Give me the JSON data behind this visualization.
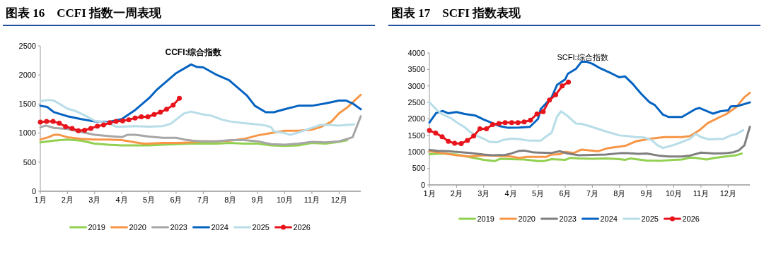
{
  "chart_data": [
    {
      "type": "line",
      "title": "图表 16　CCFI 指数一周表现",
      "subtitle": "CCFI:综合指数",
      "xlim": [
        1,
        12.8
      ],
      "xticks": [
        {
          "value": 1,
          "label": "1月"
        },
        {
          "value": 2,
          "label": "2月"
        },
        {
          "value": 3,
          "label": "3月"
        },
        {
          "value": 4,
          "label": "4月"
        },
        {
          "value": 5,
          "label": "5月"
        },
        {
          "value": 6,
          "label": "6月"
        },
        {
          "value": 7,
          "label": "7月"
        },
        {
          "value": 8,
          "label": "8月"
        },
        {
          "value": 9,
          "label": "9月"
        },
        {
          "value": 10,
          "label": "10月"
        },
        {
          "value": 11,
          "label": "11月"
        },
        {
          "value": 12,
          "label": "12月"
        }
      ],
      "ylim": [
        0,
        2500
      ],
      "yticks": [
        0,
        500,
        1000,
        1500,
        2000,
        2500
      ],
      "grid": false,
      "legend": "bottom",
      "series": [
        {
          "name": "2019",
          "color": "#92d050",
          "x": [
            1,
            1.5,
            2,
            2.5,
            3,
            3.5,
            4,
            4.5,
            5,
            5.5,
            6,
            6.5,
            7,
            7.5,
            8,
            8.5,
            9,
            9.5,
            10,
            10.5,
            11,
            11.5,
            12,
            12.3
          ],
          "values": [
            840,
            870,
            890,
            870,
            820,
            800,
            790,
            790,
            790,
            800,
            810,
            820,
            820,
            820,
            830,
            820,
            820,
            790,
            780,
            790,
            830,
            820,
            850,
            880
          ]
        },
        {
          "name": "2020",
          "color": "#f79646",
          "x": [
            1,
            1.3,
            1.5,
            1.7,
            2,
            2.5,
            3,
            3.5,
            4,
            4.5,
            4.8,
            5,
            5.5,
            6,
            6.5,
            7,
            7.5,
            8,
            8.5,
            9,
            9.5,
            10,
            10.5,
            11,
            11.3,
            11.7,
            12,
            12.3,
            12.8
          ],
          "values": [
            890,
            930,
            970,
            970,
            930,
            900,
            890,
            890,
            880,
            840,
            820,
            820,
            830,
            830,
            840,
            860,
            860,
            870,
            900,
            960,
            1000,
            1040,
            1040,
            1060,
            1100,
            1190,
            1340,
            1440,
            1660
          ]
        },
        {
          "name": "2023",
          "color": "#a6a6a6",
          "x": [
            1,
            1.2,
            1.5,
            2,
            2.5,
            3,
            3.5,
            4,
            4.2,
            4.5,
            5,
            5.5,
            6,
            6.3,
            6.6,
            7,
            7.5,
            8,
            8.5,
            9,
            9.5,
            10,
            10.5,
            11,
            11.5,
            12,
            12.3,
            12.5,
            12.8
          ],
          "values": [
            1100,
            1130,
            1090,
            1070,
            1020,
            970,
            950,
            930,
            970,
            970,
            940,
            920,
            920,
            890,
            870,
            860,
            860,
            880,
            880,
            860,
            810,
            800,
            820,
            850,
            840,
            860,
            900,
            930,
            1290
          ]
        },
        {
          "name": "2024",
          "color": "#0563c1",
          "x": [
            1,
            1.25,
            1.5,
            2,
            2.5,
            3,
            3.5,
            4,
            4.5,
            5,
            5.3,
            6,
            6.55,
            6.75,
            7,
            7.5,
            7.95,
            8.6,
            8.9,
            9.3,
            9.6,
            10,
            10.5,
            11,
            11.5,
            12,
            12.25,
            12.5,
            12.8
          ],
          "values": [
            1470,
            1450,
            1360,
            1290,
            1240,
            1200,
            1190,
            1240,
            1400,
            1600,
            1750,
            2030,
            2180,
            2140,
            2130,
            2000,
            1910,
            1650,
            1470,
            1360,
            1360,
            1410,
            1470,
            1470,
            1510,
            1560,
            1560,
            1510,
            1410
          ]
        },
        {
          "name": "2025",
          "color": "#b7dde8",
          "x": [
            1,
            1.3,
            1.5,
            2,
            2.3,
            2.7,
            3,
            3.5,
            3.8,
            4,
            4.5,
            5,
            5.5,
            5.8,
            6.1,
            6.3,
            6.55,
            7,
            7.3,
            7.7,
            8,
            8.5,
            9,
            9.3,
            9.5,
            9.6,
            10,
            10.2,
            10.5,
            11,
            11.3,
            11.6,
            12,
            12.3,
            12.55
          ],
          "values": [
            1550,
            1570,
            1560,
            1420,
            1380,
            1290,
            1210,
            1170,
            1110,
            1110,
            1120,
            1110,
            1120,
            1160,
            1270,
            1340,
            1370,
            1320,
            1300,
            1230,
            1200,
            1170,
            1150,
            1130,
            1100,
            1030,
            1000,
            970,
            1010,
            1090,
            1140,
            1140,
            1130,
            1140,
            1150
          ]
        },
        {
          "name": "2026",
          "color": "#e8141c",
          "marker": "circle",
          "x": [
            1,
            1.23,
            1.47,
            1.7,
            1.93,
            2.17,
            2.4,
            2.63,
            2.86,
            3.1,
            3.33,
            3.56,
            3.79,
            4.03,
            4.26,
            4.49,
            4.72,
            4.96,
            5.19,
            5.42,
            5.65,
            5.89,
            6.12
          ],
          "values": [
            1190,
            1200,
            1200,
            1170,
            1110,
            1080,
            1040,
            1050,
            1080,
            1120,
            1140,
            1180,
            1200,
            1210,
            1230,
            1260,
            1280,
            1280,
            1320,
            1360,
            1410,
            1480,
            1600
          ]
        }
      ]
    },
    {
      "type": "line",
      "title": "图表 17　SCFI 指数表现",
      "subtitle": "SCFI:综合指数",
      "xlim": [
        1,
        12.8
      ],
      "xticks": [
        {
          "value": 1,
          "label": "1月"
        },
        {
          "value": 2,
          "label": "2月"
        },
        {
          "value": 3,
          "label": "3月"
        },
        {
          "value": 4,
          "label": "4月"
        },
        {
          "value": 5,
          "label": "5月"
        },
        {
          "value": 6,
          "label": "6月"
        },
        {
          "value": 7,
          "label": "7月"
        },
        {
          "value": 8,
          "label": "8月"
        },
        {
          "value": 9,
          "label": "9月"
        },
        {
          "value": 10,
          "label": "10月"
        },
        {
          "value": 11,
          "label": "11月"
        },
        {
          "value": 12,
          "label": "12月"
        }
      ],
      "ylim": [
        0,
        4000
      ],
      "yticks": [
        0,
        500,
        1000,
        1500,
        2000,
        2500,
        3000,
        3500,
        4000
      ],
      "grid": false,
      "legend": "bottom",
      "series": [
        {
          "name": "2019",
          "color": "#92d050",
          "x": [
            1,
            1.5,
            2,
            2.5,
            3,
            3.4,
            3.6,
            4,
            4.5,
            5,
            5.2,
            5.5,
            6,
            6.2,
            6.5,
            7,
            7.5,
            8,
            8.2,
            8.4,
            9,
            9.5,
            10,
            10.3,
            10.6,
            10.8,
            11.2,
            11.5,
            12,
            12.3,
            12.5
          ],
          "values": [
            930,
            950,
            920,
            840,
            760,
            720,
            790,
            780,
            770,
            720,
            720,
            780,
            760,
            820,
            800,
            790,
            800,
            780,
            760,
            800,
            740,
            730,
            760,
            770,
            830,
            820,
            770,
            820,
            870,
            900,
            950
          ]
        },
        {
          "name": "2020",
          "color": "#f79646",
          "x": [
            1,
            1.5,
            2,
            2.5,
            3,
            3.5,
            4,
            4.3,
            4.6,
            5,
            5.3,
            5.5,
            5.8,
            6,
            6.33,
            6.6,
            7.2,
            7.56,
            8.2,
            8.6,
            9.14,
            9.66,
            10.3,
            10.6,
            10.98,
            11.24,
            11.6,
            11.94,
            12.3,
            12.6,
            12.8
          ],
          "values": [
            1020,
            960,
            900,
            860,
            900,
            880,
            860,
            820,
            850,
            850,
            850,
            920,
            930,
            1000,
            970,
            1070,
            1020,
            1110,
            1180,
            1320,
            1400,
            1450,
            1450,
            1480,
            1680,
            1870,
            2020,
            2150,
            2360,
            2660,
            2790
          ]
        },
        {
          "name": "2023",
          "color": "#7f7f7f",
          "x": [
            1,
            1.3,
            1.7,
            2,
            2.5,
            3,
            3.3,
            3.8,
            4,
            4.3,
            4.5,
            4.8,
            5,
            5.5,
            5.8,
            6.1,
            6.5,
            7,
            7.5,
            8,
            8.3,
            8.7,
            9,
            9.5,
            9.8,
            10.3,
            10.6,
            11,
            11.5,
            11.9,
            12.2,
            12.4,
            12.6,
            12.8
          ],
          "values": [
            1060,
            1030,
            1020,
            1000,
            970,
            920,
            900,
            910,
            950,
            1030,
            1040,
            990,
            980,
            970,
            1020,
            950,
            900,
            910,
            920,
            960,
            960,
            940,
            950,
            880,
            860,
            860,
            890,
            980,
            950,
            960,
            990,
            1050,
            1200,
            1760
          ]
        },
        {
          "name": "2024",
          "color": "#0563c1",
          "x": [
            1,
            1.25,
            1.5,
            1.7,
            2,
            2.3,
            2.7,
            3,
            3.3,
            3.6,
            3.9,
            4.3,
            4.7,
            5,
            5.1,
            5.5,
            5.7,
            6,
            6.1,
            6.4,
            6.6,
            6.8,
            7,
            7.3,
            7.7,
            8,
            8.2,
            8.5,
            8.8,
            9.1,
            9.3,
            9.6,
            9.8,
            10.3,
            10.8,
            10.95,
            11.45,
            11.7,
            12,
            12.1,
            12.35,
            12.8
          ],
          "values": [
            1890,
            2180,
            2240,
            2170,
            2210,
            2150,
            2100,
            1980,
            1880,
            1780,
            1730,
            1740,
            1760,
            2000,
            2300,
            2650,
            3030,
            3200,
            3370,
            3520,
            3730,
            3730,
            3670,
            3530,
            3380,
            3260,
            3290,
            3050,
            2760,
            2510,
            2420,
            2130,
            2060,
            2060,
            2300,
            2330,
            2160,
            2230,
            2260,
            2380,
            2390,
            2500
          ]
        },
        {
          "name": "2025",
          "color": "#b7dde8",
          "x": [
            1,
            1.3,
            1.5,
            1.8,
            2,
            2.3,
            2.5,
            2.8,
            3,
            3.2,
            3.5,
            3.7,
            4,
            4.3,
            4.6,
            4.9,
            5.1,
            5.3,
            5.5,
            5.7,
            5.85,
            6.1,
            6.4,
            6.6,
            6.9,
            7.2,
            7.5,
            8,
            8.3,
            8.6,
            8.9,
            9.2,
            9.4,
            9.6,
            10,
            10.3,
            10.6,
            10.8,
            11,
            11.3,
            11.6,
            11.8,
            12.1,
            12.3,
            12.55
          ],
          "values": [
            2500,
            2250,
            2130,
            2020,
            1900,
            1750,
            1600,
            1470,
            1400,
            1310,
            1290,
            1360,
            1400,
            1390,
            1350,
            1340,
            1340,
            1470,
            1580,
            2070,
            2230,
            2080,
            1860,
            1850,
            1780,
            1700,
            1620,
            1500,
            1480,
            1450,
            1440,
            1350,
            1200,
            1120,
            1210,
            1300,
            1400,
            1550,
            1450,
            1380,
            1390,
            1390,
            1500,
            1540,
            1660
          ]
        },
        {
          "name": "2026",
          "color": "#e8141c",
          "marker": "circle",
          "x": [
            1,
            1.23,
            1.47,
            1.7,
            1.93,
            2.17,
            2.4,
            2.63,
            2.86,
            3.1,
            3.33,
            3.56,
            3.79,
            4.03,
            4.26,
            4.49,
            4.72,
            4.96,
            5.19,
            5.42,
            5.65,
            5.89,
            6.12
          ],
          "values": [
            1650,
            1570,
            1460,
            1320,
            1260,
            1250,
            1350,
            1480,
            1700,
            1700,
            1830,
            1860,
            1890,
            1890,
            1890,
            1910,
            1960,
            2150,
            2220,
            2570,
            2730,
            3000,
            3120
          ]
        }
      ]
    }
  ]
}
